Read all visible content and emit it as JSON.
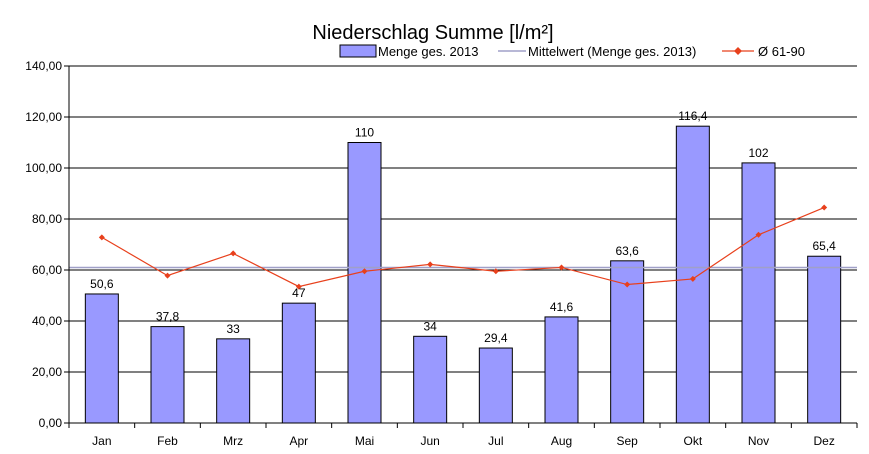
{
  "chart_data": {
    "type": "bar",
    "title": "Niederschlag Summe [l/m²]",
    "categories": [
      "Jan",
      "Feb",
      "Mrz",
      "Apr",
      "Mai",
      "Jun",
      "Jul",
      "Aug",
      "Sep",
      "Okt",
      "Nov",
      "Dez"
    ],
    "series": [
      {
        "name": "Menge ges. 2013",
        "type": "bar",
        "color": "#9999ff",
        "values": [
          50.6,
          37.8,
          33,
          47,
          110,
          34,
          29.4,
          41.6,
          63.6,
          116.4,
          102,
          65.4
        ],
        "labels": [
          "50,6",
          "37,8",
          "33",
          "47",
          "110",
          "34",
          "29,4",
          "41,6",
          "63,6",
          "116,4",
          "102",
          "65,4"
        ]
      },
      {
        "name": "Mittelwert (Menge ges. 2013)",
        "type": "hline",
        "color": "#a0a0c8",
        "value": 61.0
      },
      {
        "name": "Ø 61-90",
        "type": "line",
        "color": "#e8401c",
        "values": [
          72.8,
          57.8,
          66.5,
          53.5,
          59.5,
          62.2,
          59.5,
          61.0,
          54.3,
          56.5,
          73.8,
          84.5
        ]
      }
    ],
    "y_ticks": [
      "0,00",
      "20,00",
      "40,00",
      "60,00",
      "80,00",
      "100,00",
      "120,00",
      "140,00"
    ],
    "ylim": [
      0,
      140
    ],
    "grid": true,
    "legend_position": "top"
  }
}
